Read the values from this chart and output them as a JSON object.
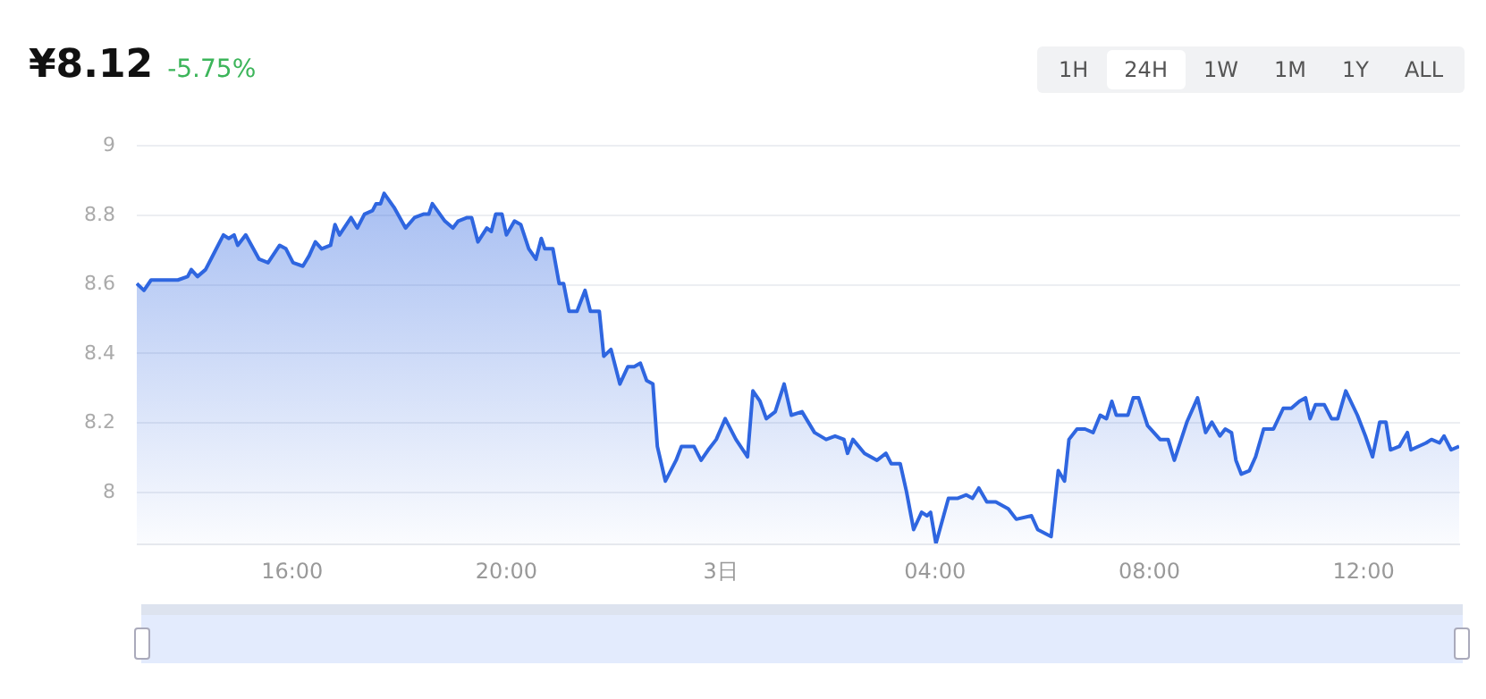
{
  "chart_data": {
    "type": "area",
    "title": "¥8.12",
    "subtitle": "-5.75%",
    "annotations": [
      "1H",
      "24H",
      "1W",
      "1M",
      "1Y",
      "ALL"
    ],
    "x": [
      "--01-02T13:07",
      "--01-02T13:15",
      "--01-02T13:23",
      "--01-02T13:34",
      "--01-02T13:53",
      "--01-02T14:04",
      "--01-02T14:08",
      "--01-02T14:15",
      "--01-02T14:24",
      "--01-02T14:34",
      "--01-02T14:44",
      "--01-02T14:50",
      "--01-02T14:56",
      "--01-02T15:00",
      "--01-02T15:09",
      "--01-02T15:24",
      "--01-02T15:34",
      "--01-02T15:47",
      "--01-02T15:54",
      "--01-02T16:02",
      "--01-02T16:13",
      "--01-02T16:20",
      "--01-02T16:27",
      "--01-02T16:34",
      "--01-02T16:44",
      "--01-02T16:49",
      "--01-02T16:54",
      "--01-02T17:07",
      "--01-02T17:14",
      "--01-02T17:22",
      "--01-02T17:31",
      "--01-02T17:35",
      "--01-02T17:40",
      "--01-02T17:44",
      "--01-02T17:55",
      "--01-02T18:08",
      "--01-02T18:18",
      "--01-02T18:28",
      "--01-02T18:34",
      "--01-02T18:38",
      "--01-02T18:52",
      "--01-02T19:01",
      "--01-02T19:07",
      "--01-02T19:17",
      "--01-02T19:22",
      "--01-02T19:29",
      "--01-02T19:39",
      "--01-02T19:44",
      "--01-02T19:49",
      "--01-02T19:56",
      "--01-02T20:01",
      "--01-02T20:10",
      "--01-02T20:17",
      "--01-02T20:26",
      "--01-02T20:34",
      "--01-02T20:40",
      "--01-02T20:44",
      "--01-02T20:53",
      "--01-02T21:00",
      "--01-02T21:05",
      "--01-02T21:11",
      "--01-02T21:20",
      "--01-02T21:29",
      "--01-02T21:35",
      "--01-02T21:45",
      "--01-02T21:50",
      "--01-02T21:58",
      "--01-02T22:08",
      "--01-02T22:17",
      "--01-02T22:24",
      "--01-02T22:31",
      "--01-02T22:38",
      "--01-02T22:45",
      "--01-02T22:50",
      "--01-02T22:59",
      "--01-02T23:11",
      "--01-02T23:17",
      "--01-02T23:31",
      "--01-02T23:39",
      "--01-02T23:47",
      "--01-02T23:56",
      "--01-03T00:06",
      "--01-03T00:18",
      "--01-03T00:31",
      "--01-03T00:37",
      "--01-03T00:45",
      "--01-03T00:52",
      "--01-03T01:02",
      "--01-03T01:12",
      "--01-03T01:20",
      "--01-03T01:32",
      "--01-03T01:46",
      "--01-03T01:59",
      "--01-03T02:09",
      "--01-03T02:19",
      "--01-03T02:23",
      "--01-03T02:29",
      "--01-03T02:42",
      "--01-03T02:56",
      "--01-03T03:06",
      "--01-03T03:12",
      "--01-03T03:22",
      "--01-03T03:29",
      "--01-03T03:37",
      "--01-03T03:46",
      "--01-03T03:52",
      "--01-03T03:56",
      "--01-03T04:02",
      "--01-03T04:16",
      "--01-03T04:26",
      "--01-03T04:36",
      "--01-03T04:43",
      "--01-03T04:50",
      "--01-03T04:59",
      "--01-03T05:09",
      "--01-03T05:23",
      "--01-03T05:32",
      "--01-03T05:49",
      "--01-03T05:56",
      "--01-03T06:11",
      "--01-03T06:19",
      "--01-03T06:26",
      "--01-03T06:31",
      "--01-03T06:40",
      "--01-03T06:49",
      "--01-03T06:58",
      "--01-03T07:06",
      "--01-03T07:13",
      "--01-03T07:19",
      "--01-03T07:24",
      "--01-03T07:37",
      "--01-03T07:43",
      "--01-03T07:49",
      "--01-03T07:59",
      "--01-03T08:13",
      "--01-03T08:22",
      "--01-03T08:29",
      "--01-03T08:43",
      "--01-03T08:55",
      "--01-03T09:04",
      "--01-03T09:11",
      "--01-03T09:20",
      "--01-03T09:26",
      "--01-03T09:33",
      "--01-03T09:38",
      "--01-03T09:44",
      "--01-03T09:53",
      "--01-03T10:00",
      "--01-03T10:09",
      "--01-03T10:20",
      "--01-03T10:31",
      "--01-03T10:40",
      "--01-03T10:49",
      "--01-03T10:56",
      "--01-03T11:01",
      "--01-03T11:07",
      "--01-03T11:17",
      "--01-03T11:25",
      "--01-03T11:32",
      "--01-03T11:41",
      "--01-03T11:54",
      "--01-03T12:03",
      "--01-03T12:11",
      "--01-03T12:19",
      "--01-03T12:26",
      "--01-03T12:31",
      "--01-03T12:41",
      "--01-03T12:50",
      "--01-03T12:54",
      "--01-03T13:11",
      "--01-03T13:17",
      "--01-03T13:26",
      "--01-03T13:31",
      "--01-03T13:39",
      "--01-03T13:48"
    ],
    "series": [
      {
        "color": "#2f66e0",
        "values": [
          8.6,
          8.58,
          8.61,
          8.61,
          8.61,
          8.62,
          8.64,
          8.62,
          8.64,
          8.69,
          8.74,
          8.73,
          8.74,
          8.71,
          8.74,
          8.67,
          8.66,
          8.71,
          8.7,
          8.66,
          8.65,
          8.68,
          8.72,
          8.7,
          8.71,
          8.77,
          8.74,
          8.79,
          8.76,
          8.8,
          8.81,
          8.83,
          8.83,
          8.86,
          8.82,
          8.76,
          8.79,
          8.8,
          8.8,
          8.83,
          8.78,
          8.76,
          8.78,
          8.79,
          8.79,
          8.72,
          8.76,
          8.75,
          8.8,
          8.8,
          8.74,
          8.78,
          8.77,
          8.7,
          8.67,
          8.73,
          8.7,
          8.7,
          8.6,
          8.6,
          8.52,
          8.52,
          8.58,
          8.52,
          8.52,
          8.39,
          8.41,
          8.31,
          8.36,
          8.36,
          8.37,
          8.32,
          8.31,
          8.13,
          8.03,
          8.09,
          8.13,
          8.13,
          8.09,
          8.12,
          8.15,
          8.21,
          8.15,
          8.1,
          8.29,
          8.26,
          8.21,
          8.23,
          8.31,
          8.22,
          8.23,
          8.17,
          8.15,
          8.16,
          8.15,
          8.11,
          8.15,
          8.11,
          8.09,
          8.11,
          8.08,
          8.08,
          8.0,
          7.89,
          7.94,
          7.93,
          7.94,
          7.85,
          7.98,
          7.98,
          7.99,
          7.98,
          8.01,
          7.97,
          7.97,
          7.95,
          7.92,
          7.93,
          7.89,
          7.87,
          8.06,
          8.03,
          8.15,
          8.18,
          8.18,
          8.17,
          8.22,
          8.21,
          8.26,
          8.22,
          8.22,
          8.27,
          8.27,
          8.19,
          8.15,
          8.15,
          8.09,
          8.2,
          8.27,
          8.17,
          8.2,
          8.16,
          8.18,
          8.17,
          8.09,
          8.05,
          8.06,
          8.1,
          8.18,
          8.18,
          8.24,
          8.24,
          8.26,
          8.27,
          8.21,
          8.25,
          8.25,
          8.21,
          8.21,
          8.29,
          8.22,
          8.16,
          8.1,
          8.2,
          8.2,
          8.12,
          8.13,
          8.17,
          8.12,
          8.14,
          8.15,
          8.14,
          8.16,
          8.12,
          8.13
        ]
      }
    ],
    "xlim": [
      "--01-02T13:06",
      "--01-03T13:48"
    ],
    "xticks": [
      {
        "value": "--01-02T16:00",
        "label": "16:00"
      },
      {
        "value": "--01-02T20:00",
        "label": "20:00"
      },
      {
        "value": "--01-03T00:00",
        "label": "3日"
      },
      {
        "value": "--01-03T04:00",
        "label": "04:00"
      },
      {
        "value": "--01-03T08:00",
        "label": "08:00"
      },
      {
        "value": "--01-03T12:00",
        "label": "12:00"
      }
    ],
    "ylim": [
      7.85,
      9
    ],
    "yticks": [
      8,
      8.2,
      8.4,
      8.6,
      8.8,
      9
    ],
    "grid": "y"
  }
}
